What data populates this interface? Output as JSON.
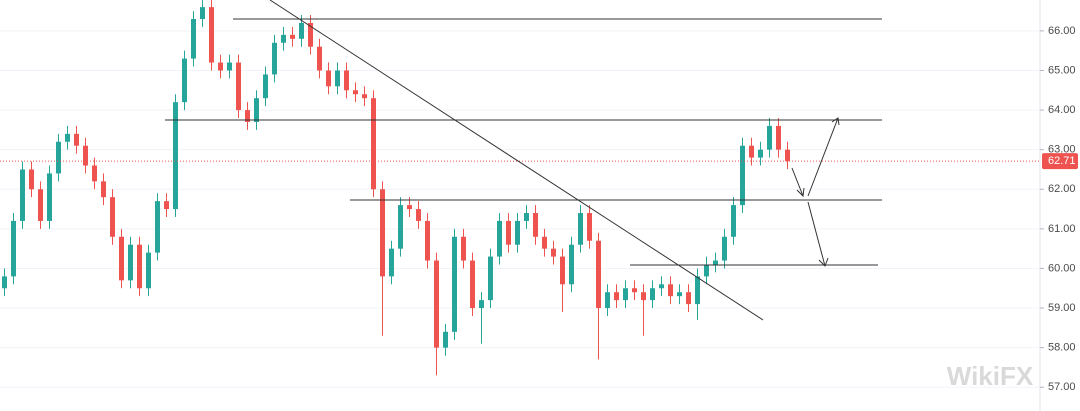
{
  "chart_data": {
    "type": "candlestick",
    "up_color": "#26a69a",
    "down_color": "#ef5350",
    "price_line_color": "#ef5350",
    "open": [
      59.5,
      59.8,
      61.2,
      62.5,
      62.0,
      61.2,
      62.4,
      63.2,
      63.4,
      63.1,
      62.6,
      62.2,
      61.8,
      60.8,
      59.7,
      60.6,
      59.5,
      60.4,
      61.7,
      61.5,
      64.2,
      65.3,
      66.3,
      66.6,
      65.2,
      65.0,
      65.2,
      64.0,
      63.7,
      64.3,
      64.9,
      65.7,
      65.9,
      65.8,
      66.2,
      65.6,
      65.0,
      64.6,
      65.0,
      64.5,
      64.4,
      64.3,
      62.0,
      59.8,
      60.5,
      61.6,
      61.5,
      61.2,
      60.2,
      58.0,
      58.4,
      60.8,
      60.2,
      59.0,
      59.2,
      60.3,
      61.2,
      60.6,
      61.2,
      61.4,
      60.8,
      60.5,
      60.3,
      59.6,
      60.6,
      61.4,
      60.7,
      59.0,
      59.4,
      59.2,
      59.5,
      59.4,
      59.2,
      59.5,
      59.6,
      59.3,
      59.4,
      59.1,
      59.8,
      60.1,
      60.2,
      60.8,
      61.6,
      63.1,
      62.8,
      63.0,
      63.6,
      63.0
    ],
    "high": [
      60.0,
      61.4,
      62.7,
      62.7,
      62.2,
      62.6,
      63.4,
      63.6,
      63.6,
      63.3,
      62.8,
      62.4,
      62.0,
      61.0,
      60.8,
      60.8,
      60.6,
      61.9,
      61.9,
      64.4,
      65.5,
      66.5,
      66.8,
      66.8,
      65.4,
      65.4,
      65.4,
      64.2,
      64.5,
      65.1,
      65.9,
      66.1,
      66.1,
      66.4,
      66.4,
      65.8,
      65.2,
      65.2,
      65.2,
      64.7,
      64.6,
      64.5,
      62.2,
      60.7,
      61.8,
      61.8,
      61.7,
      61.4,
      60.4,
      58.6,
      61.0,
      61.0,
      60.4,
      59.4,
      60.5,
      61.4,
      61.4,
      61.4,
      61.6,
      61.6,
      61.0,
      60.7,
      60.5,
      60.8,
      61.6,
      61.6,
      60.9,
      59.6,
      59.6,
      59.7,
      59.7,
      59.6,
      59.7,
      59.8,
      59.8,
      59.6,
      59.6,
      60.0,
      60.3,
      60.4,
      61.0,
      61.8,
      63.3,
      63.3,
      63.2,
      63.8,
      63.8,
      63.2
    ],
    "low": [
      59.3,
      59.6,
      61.0,
      61.8,
      61.0,
      61.0,
      62.2,
      63.0,
      62.9,
      62.4,
      62.0,
      61.6,
      60.6,
      59.5,
      59.5,
      59.3,
      59.3,
      60.2,
      61.3,
      61.3,
      64.0,
      65.1,
      66.1,
      65.0,
      64.8,
      64.8,
      63.8,
      63.5,
      63.5,
      64.1,
      64.7,
      65.5,
      65.6,
      65.6,
      65.4,
      64.8,
      64.4,
      64.4,
      64.3,
      64.2,
      64.1,
      61.8,
      58.3,
      59.6,
      60.3,
      61.3,
      61.0,
      60.0,
      57.3,
      57.8,
      58.2,
      60.0,
      58.8,
      58.1,
      59.0,
      60.1,
      60.4,
      60.4,
      61.0,
      60.6,
      60.3,
      60.1,
      58.9,
      59.4,
      60.4,
      60.5,
      57.7,
      58.8,
      59.0,
      59.0,
      59.2,
      58.3,
      59.0,
      59.3,
      59.1,
      59.1,
      58.9,
      58.7,
      59.6,
      59.9,
      60.0,
      60.6,
      61.4,
      62.6,
      62.6,
      62.8,
      62.8,
      62.51
    ],
    "close": [
      59.8,
      61.2,
      62.5,
      62.0,
      61.2,
      62.4,
      63.2,
      63.4,
      63.1,
      62.6,
      62.2,
      61.8,
      60.8,
      59.7,
      60.6,
      59.5,
      60.4,
      61.7,
      61.5,
      64.2,
      65.3,
      66.3,
      66.6,
      65.2,
      65.0,
      65.2,
      64.0,
      63.7,
      64.3,
      64.9,
      65.7,
      65.9,
      65.8,
      66.2,
      65.6,
      65.0,
      64.6,
      65.0,
      64.5,
      64.4,
      64.3,
      62.0,
      59.8,
      60.5,
      61.6,
      61.5,
      61.2,
      60.2,
      58.0,
      58.4,
      60.8,
      60.2,
      59.0,
      59.2,
      60.3,
      61.2,
      60.6,
      61.2,
      61.4,
      60.8,
      60.5,
      60.3,
      59.6,
      60.6,
      61.4,
      60.7,
      59.0,
      59.4,
      59.2,
      59.5,
      59.4,
      59.2,
      59.5,
      59.6,
      59.3,
      59.4,
      59.1,
      59.8,
      60.1,
      60.2,
      60.8,
      61.6,
      63.1,
      62.8,
      63.0,
      63.6,
      63.0,
      62.71
    ],
    "ylim": [
      56.4,
      66.78
    ],
    "yticks": [
      {
        "value": 57,
        "label": "57.00"
      },
      {
        "value": 58,
        "label": "58.00"
      },
      {
        "value": 59,
        "label": "59.00"
      },
      {
        "value": 60,
        "label": "60.00"
      },
      {
        "value": 61,
        "label": "61.00"
      },
      {
        "value": 62,
        "label": "62.00"
      },
      {
        "value": 63,
        "label": "63.00"
      },
      {
        "value": 64,
        "label": "64.00"
      },
      {
        "value": 65,
        "label": "65.00"
      },
      {
        "value": 66,
        "label": "66.00"
      }
    ],
    "grid": true,
    "watermark": "WikiFX"
  }
}
